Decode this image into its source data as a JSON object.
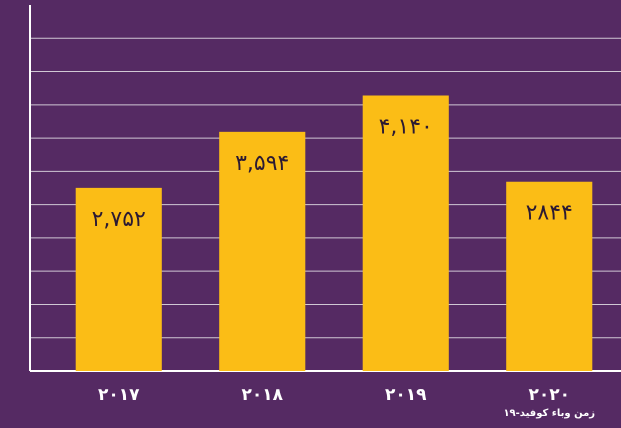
{
  "chart_data": {
    "type": "bar",
    "categories": [
      "۲۰۱۷",
      "۲۰۱۸",
      "۲۰۱۹",
      "۲۰۲۰"
    ],
    "values": [
      2752,
      3594,
      4140,
      2844
    ],
    "value_labels": [
      "۲,۷۵۲",
      "۳,۵۹۴",
      "۴,۱۴۰",
      "۲۸۴۴"
    ],
    "color": "#fbbd16",
    "ylim": [
      0,
      5500
    ],
    "yticks": [
      0,
      500,
      1000,
      1500,
      2000,
      2500,
      3000,
      3500,
      4000,
      4500,
      5000
    ],
    "grid": true,
    "annotations": [
      "زمن وباء كوفيد-۱۹"
    ]
  }
}
